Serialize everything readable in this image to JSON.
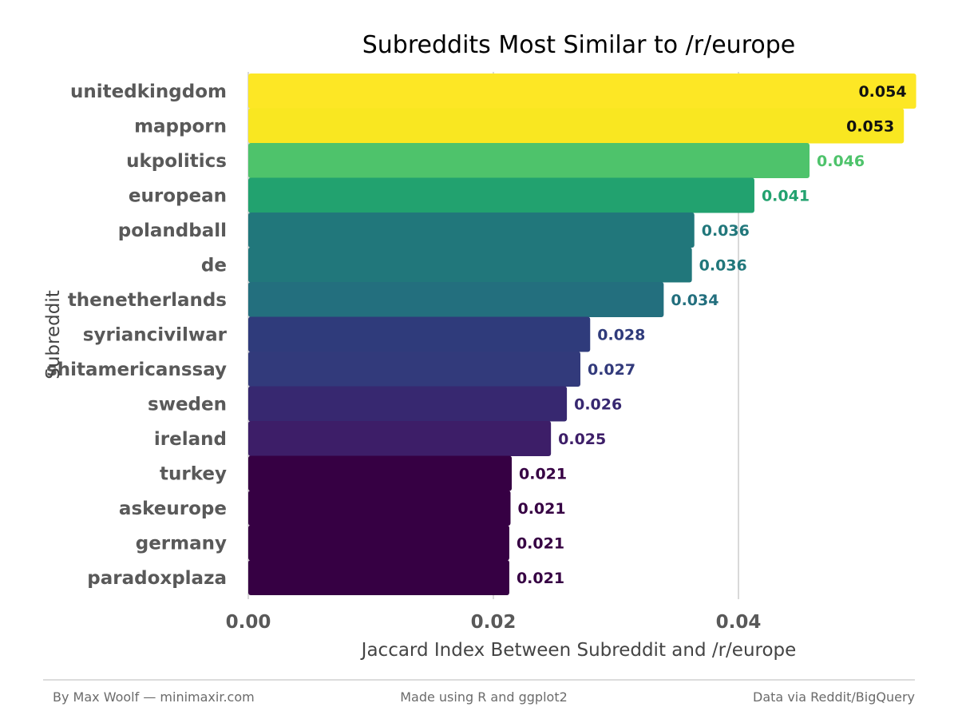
{
  "chart_data": {
    "type": "bar",
    "orientation": "horizontal",
    "title": "Subreddits Most Similar to /r/europe",
    "xlabel": "Jaccard Index Between Subreddit and /r/europe",
    "ylabel": "Subreddit",
    "xlim": [
      0,
      0.054
    ],
    "x_ticks": [
      0.0,
      0.02,
      0.04
    ],
    "x_tick_labels": [
      "0.00",
      "0.02",
      "0.04"
    ],
    "grid": "vertical major lines",
    "legend": "none",
    "categories": [
      "unitedkingdom",
      "mapporn",
      "ukpolitics",
      "european",
      "polandball",
      "de",
      "thenetherlands",
      "syriancivilwar",
      "shitamericanssay",
      "sweden",
      "ireland",
      "turkey",
      "askeurope",
      "germany",
      "paradoxplaza"
    ],
    "values": [
      0.0545,
      0.0535,
      0.0458,
      0.0413,
      0.0364,
      0.0362,
      0.0339,
      0.0279,
      0.0271,
      0.026,
      0.0247,
      0.0215,
      0.0214,
      0.0213,
      0.0213
    ],
    "value_labels": [
      "0.054",
      "0.053",
      "0.046",
      "0.041",
      "0.036",
      "0.036",
      "0.034",
      "0.028",
      "0.027",
      "0.026",
      "0.025",
      "0.021",
      "0.021",
      "0.021",
      "0.021"
    ],
    "colors": [
      "#fde725",
      "#f9e721",
      "#4ec36b",
      "#22a26f",
      "#21777b",
      "#21777b",
      "#236f7e",
      "#2f3b7b",
      "#323a7b",
      "#372870",
      "#3d1e68",
      "#360043",
      "#360043",
      "#360043",
      "#360043"
    ],
    "label_colors": [
      "#111111",
      "#111111",
      "#4ec36b",
      "#22a26f",
      "#21777b",
      "#21777b",
      "#236f7e",
      "#2f3b7b",
      "#323a7b",
      "#372870",
      "#3d1e68",
      "#360043",
      "#360043",
      "#360043",
      "#360043"
    ]
  },
  "caption": {
    "left": "By Max Woolf — minimaxir.com",
    "center": "Made using R and ggplot2",
    "right": "Data via Reddit/BigQuery"
  }
}
